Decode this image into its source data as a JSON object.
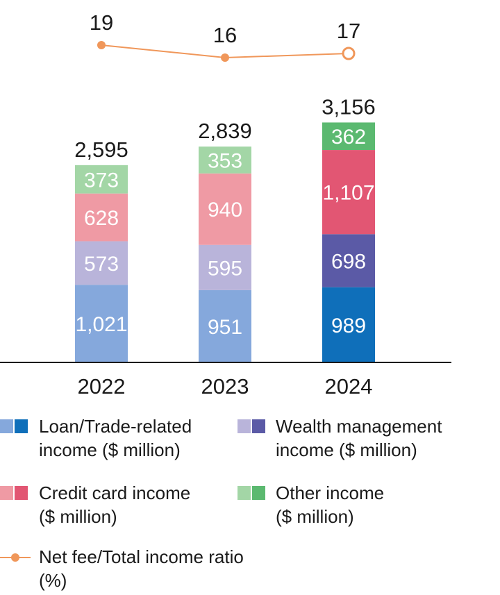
{
  "chart_data": {
    "type": "bar",
    "stacked": true,
    "categories": [
      "2022",
      "2023",
      "2024"
    ],
    "series": [
      {
        "name": "Loan/Trade-related income ($ million)",
        "values": [
          1021,
          951,
          989
        ],
        "colors": [
          "#85a8dc",
          "#85a8dc",
          "#0f6fba"
        ]
      },
      {
        "name": "Wealth management income ($ million)",
        "values": [
          573,
          595,
          698
        ],
        "colors": [
          "#b9b4da",
          "#b9b4da",
          "#5b5aa6"
        ]
      },
      {
        "name": "Credit card income ($ million)",
        "values": [
          628,
          940,
          1107
        ],
        "colors": [
          "#ef9aa4",
          "#ef9aa4",
          "#e25673"
        ]
      },
      {
        "name": "Other income ($ million)",
        "values": [
          373,
          353,
          362
        ],
        "colors": [
          "#a3d6a6",
          "#a3d6a6",
          "#5bb970"
        ]
      }
    ],
    "value_labels": [
      [
        "1,021",
        "951",
        "989"
      ],
      [
        "573",
        "595",
        "698"
      ],
      [
        "628",
        "940",
        "1,107"
      ],
      [
        "373",
        "353",
        "362"
      ]
    ],
    "totals": [
      2595,
      2839,
      3156
    ],
    "total_labels": [
      "2,595",
      "2,839",
      "3,156"
    ],
    "line_series": {
      "name": "Net fee/Total income ratio (%)",
      "values": [
        19,
        16,
        17
      ],
      "labels": [
        "19",
        "16",
        "17"
      ],
      "color": "#f0975a",
      "last_marker": "hollow"
    },
    "legend_placement": "bottom",
    "grid": false
  },
  "legend": {
    "loan_line1": "Loan/Trade-related",
    "loan_line2": "income ($ million)",
    "wealth_line1": "Wealth management",
    "wealth_line2": "income ($ million)",
    "credit_line1": "Credit card income",
    "credit_line2": "($ million)",
    "other_line1": "Other income",
    "other_line2": "($ million)",
    "ratio_line1": "Net fee/Total income ratio",
    "ratio_line2": "(%)"
  }
}
